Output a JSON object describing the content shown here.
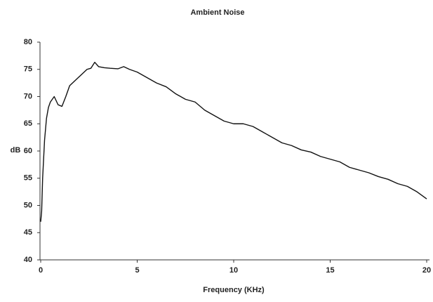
{
  "chart_data": {
    "type": "line",
    "title": "Ambient Noise",
    "xlabel": "Frequency (KHz)",
    "ylabel": "dB",
    "x": [
      0,
      0.05,
      0.1,
      0.2,
      0.3,
      0.4,
      0.5,
      0.7,
      0.9,
      1.1,
      1.3,
      1.5,
      1.8,
      2.1,
      2.4,
      2.6,
      2.8,
      3.0,
      3.3,
      3.6,
      4.0,
      4.3,
      4.6,
      5.0,
      5.5,
      6.0,
      6.5,
      7.0,
      7.5,
      8.0,
      8.5,
      9.0,
      9.5,
      10.0,
      10.5,
      11.0,
      11.5,
      12.0,
      12.5,
      13.0,
      13.5,
      14.0,
      14.5,
      15.0,
      15.5,
      16.0,
      16.5,
      17.0,
      17.5,
      18.0,
      18.5,
      19.0,
      19.5,
      20.0
    ],
    "values": [
      47,
      49,
      55,
      62,
      66,
      68,
      69,
      70,
      68.5,
      68.2,
      70,
      72,
      73,
      74,
      75,
      75.2,
      76.3,
      75.5,
      75.3,
      75.2,
      75.1,
      75.5,
      75,
      74.5,
      73.5,
      72.5,
      71.8,
      70.5,
      69.5,
      69,
      67.5,
      66.5,
      65.5,
      65,
      65,
      64.5,
      63.5,
      62.5,
      61.5,
      61,
      60.2,
      59.8,
      59,
      58.5,
      58,
      57,
      56.5,
      56,
      55.3,
      54.8,
      54,
      53.5,
      52.5,
      51.2
    ],
    "color": "#111111",
    "xlim": [
      0,
      20
    ],
    "xticks": [
      0,
      5,
      10,
      15,
      20
    ],
    "ylim": [
      40,
      80
    ],
    "yticks": [
      40,
      45,
      50,
      55,
      60,
      65,
      70,
      75,
      80
    ],
    "grid": false
  }
}
